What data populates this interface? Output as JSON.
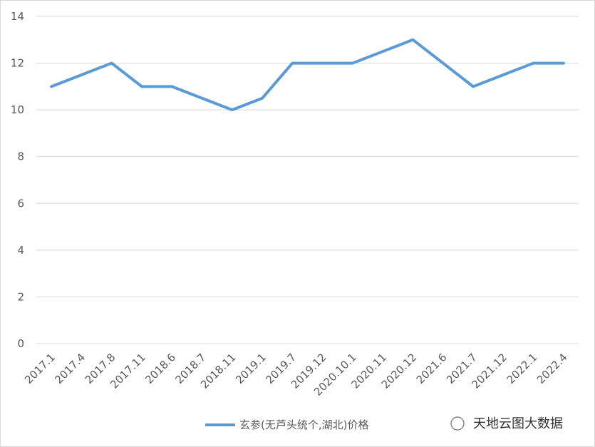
{
  "chart_data": {
    "type": "line",
    "categories": [
      "2017.1",
      "2017.4",
      "2017.8",
      "2017.11",
      "2018.6",
      "2018.7",
      "2018.11",
      "2019.1",
      "2019.7",
      "2019.12",
      "2020.10.1",
      "2020.11",
      "2020.12",
      "2021.6",
      "2021.7",
      "2021.12",
      "2022.1",
      "2022.4"
    ],
    "series": [
      {
        "name": "玄参(无芦头统个,湖北)价格",
        "color": "#5b9bd5",
        "values": [
          11,
          11.5,
          12,
          11,
          11,
          10.5,
          10,
          10.5,
          12,
          12,
          12,
          12.5,
          13,
          12,
          11,
          11.5,
          12,
          12
        ]
      }
    ],
    "ylim": [
      0,
      14
    ],
    "yticks": [
      0,
      2,
      4,
      6,
      8,
      10,
      12,
      14
    ],
    "grid": true,
    "legend": "bottom",
    "watermark": "天地云图大数据"
  }
}
